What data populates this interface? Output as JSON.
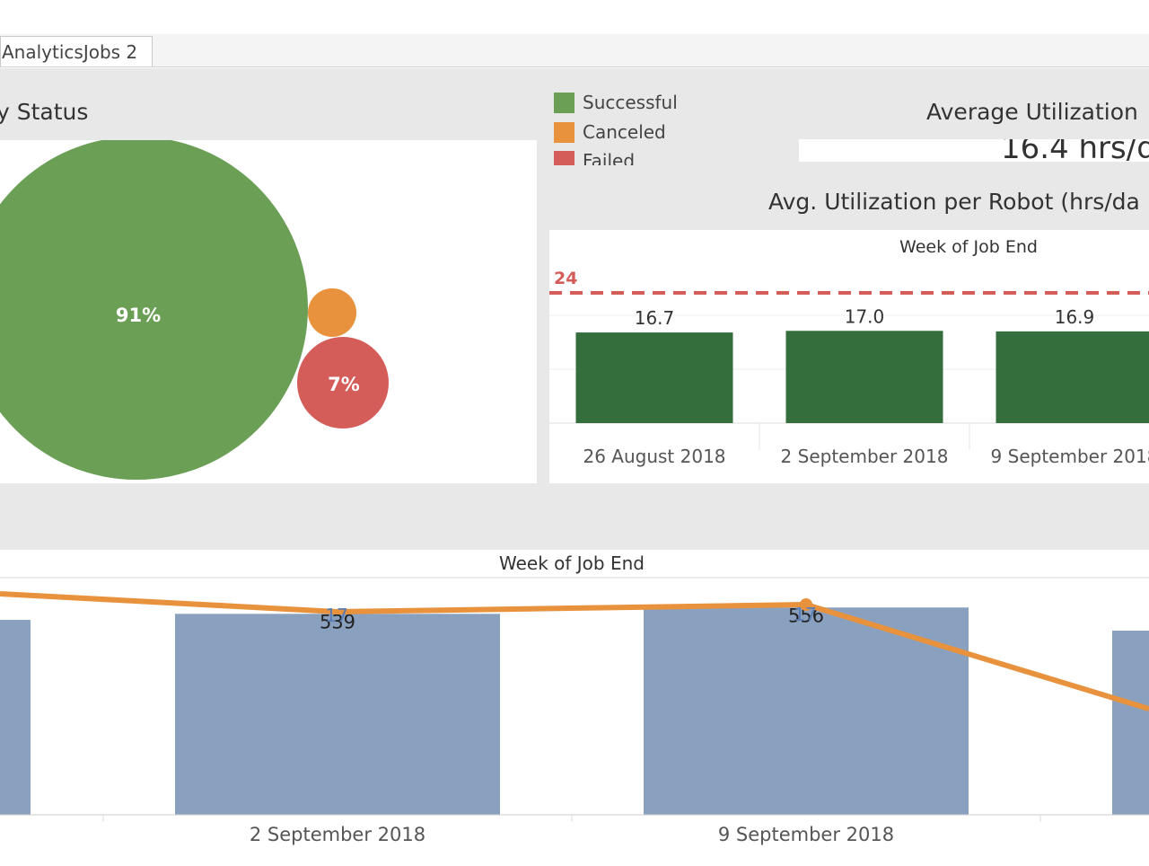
{
  "tabs": [
    {
      "label": "AnalyticsJobs 2"
    }
  ],
  "status_panel": {
    "title": "y Status",
    "legend": [
      {
        "label": "Successful",
        "color": "#6a9f55"
      },
      {
        "label": "Canceled",
        "color": "#e8923e"
      },
      {
        "label": "Failed",
        "color": "#d45d5a"
      }
    ],
    "bubbles": [
      {
        "label": "91%",
        "color": "#6a9f55"
      },
      {
        "label": "",
        "color": "#e8923e"
      },
      {
        "label": "7%",
        "color": "#d45d5a"
      }
    ]
  },
  "avg_utilization": {
    "title": "Average Utilization",
    "value": "16.4 hrs/d"
  },
  "robot_chart": {
    "title": "Avg. Utilization per Robot (hrs/da",
    "header": "Week of Job End",
    "reference_label": "24",
    "bar_color": "#336e3c",
    "reference_color": "#d45d5a"
  },
  "bottom_chart": {
    "header": "Week of Job End",
    "bar_color": "#8aa0bf",
    "line_color": "#e8923e",
    "line_label_color": "#5a7db5"
  },
  "chart_data": [
    {
      "type": "bar",
      "title": "Avg. Utilization per Robot (hrs/da",
      "xlabel": "Week of Job End",
      "categories": [
        "26 August 2018",
        "2 September 2018",
        "9 September 2018"
      ],
      "values": [
        16.7,
        17.0,
        16.9
      ],
      "value_labels": [
        "16.7",
        "17.0",
        "16.9"
      ],
      "reference_line": 24,
      "ylim": [
        0,
        26
      ],
      "grid": true
    },
    {
      "type": "bar",
      "xlabel": "Week of Job End",
      "categories": [
        "2 September 2018",
        "9 September 2018"
      ],
      "series": [
        {
          "kind": "bar",
          "values": [
            539,
            556
          ],
          "labels": [
            "539",
            "556"
          ]
        },
        {
          "kind": "line",
          "values": [
            17,
            17
          ],
          "labels": [
            "17",
            "17"
          ]
        }
      ],
      "grid": false
    }
  ]
}
